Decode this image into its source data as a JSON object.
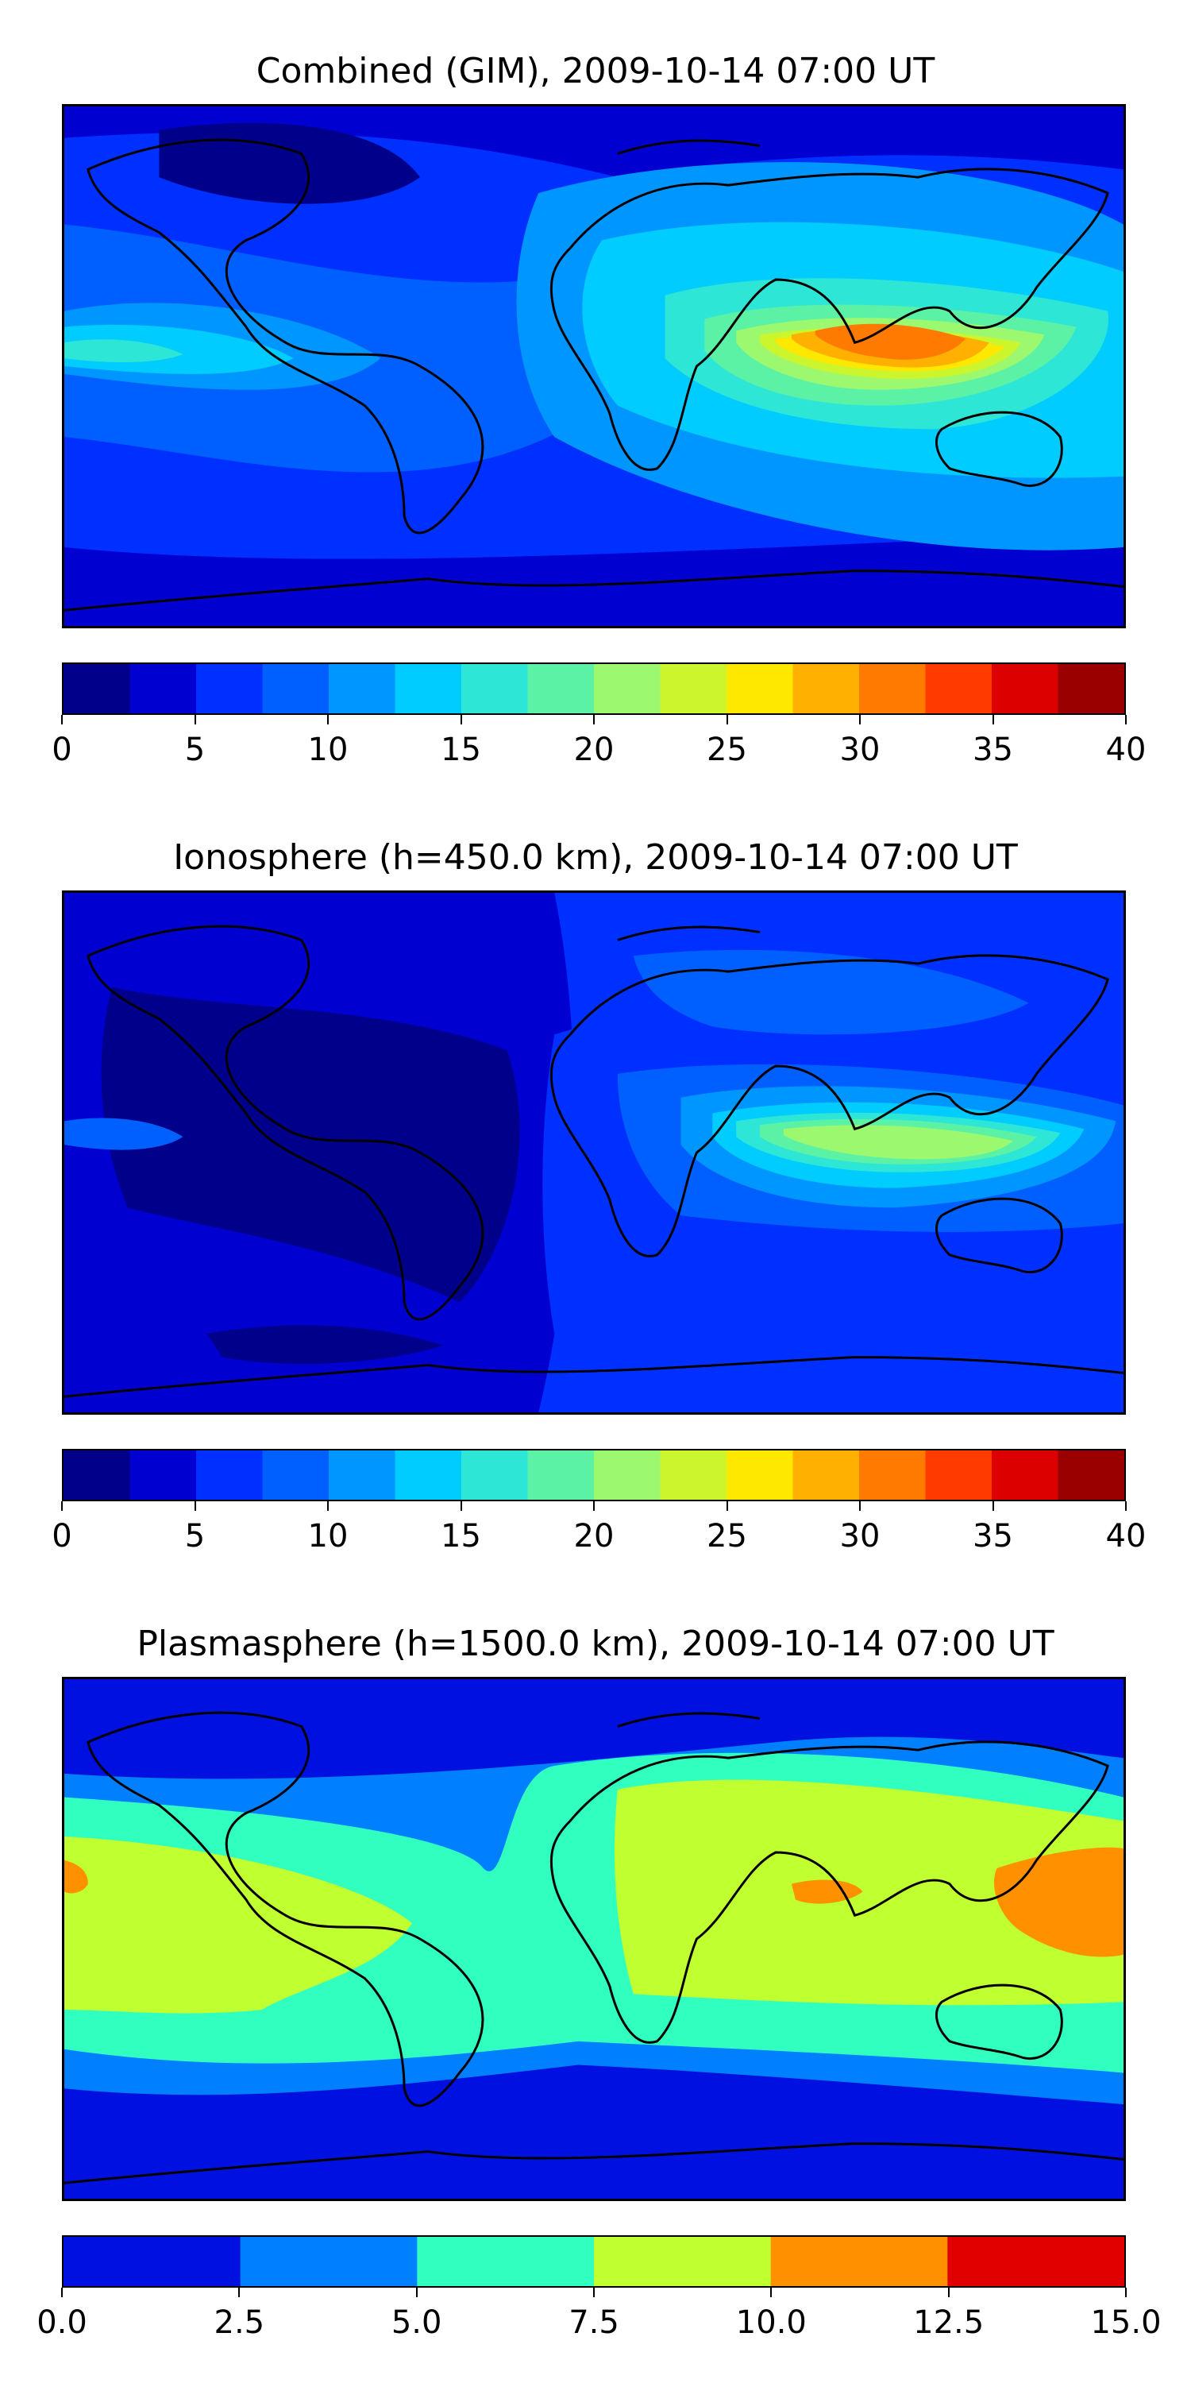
{
  "panels": [
    {
      "title": "Combined (GIM), 2009-10-14 07:00 UT",
      "colorbar": {
        "colors": [
          "#00008b",
          "#0000d0",
          "#0030ff",
          "#0060ff",
          "#0096ff",
          "#00ccff",
          "#2ee6d6",
          "#5cf2a6",
          "#9cf86e",
          "#cbf52d",
          "#ffe800",
          "#ffb000",
          "#ff7a00",
          "#ff3b00",
          "#dc0000",
          "#9a0000"
        ],
        "tick_labels": [
          "0",
          "5",
          "10",
          "15",
          "20",
          "25",
          "30",
          "35",
          "40"
        ],
        "range": [
          0,
          40
        ]
      }
    },
    {
      "title": "Ionosphere  (h=450.0 km), 2009-10-14 07:00 UT",
      "colorbar": {
        "colors": [
          "#00008b",
          "#0000d0",
          "#0030ff",
          "#0060ff",
          "#0096ff",
          "#00ccff",
          "#2ee6d6",
          "#5cf2a6",
          "#9cf86e",
          "#cbf52d",
          "#ffe800",
          "#ffb000",
          "#ff7a00",
          "#ff3b00",
          "#dc0000",
          "#9a0000"
        ],
        "tick_labels": [
          "0",
          "5",
          "10",
          "15",
          "20",
          "25",
          "30",
          "35",
          "40"
        ],
        "range": [
          0,
          40
        ]
      }
    },
    {
      "title": "Plasmasphere (h=1500.0 km), 2009-10-14 07:00 UT",
      "colorbar": {
        "colors": [
          "#0010e0",
          "#0080ff",
          "#30ffc0",
          "#c0ff30",
          "#ff9000",
          "#e00000"
        ],
        "tick_labels": [
          "0.0",
          "2.5",
          "5.0",
          "7.5",
          "10.0",
          "12.5",
          "15.0"
        ],
        "range": [
          0,
          15
        ]
      }
    }
  ]
}
